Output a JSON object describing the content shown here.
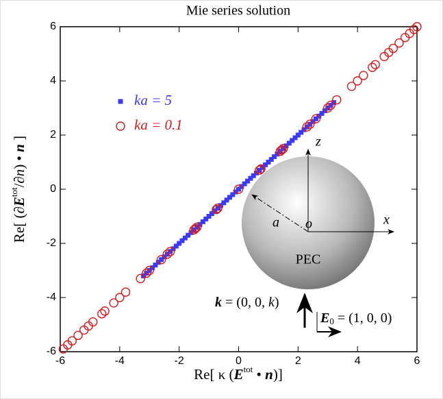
{
  "chart_data": {
    "type": "scatter",
    "title": "Mie series solution",
    "x_label": [
      "Re[ κ (",
      "E",
      "tot",
      " • ",
      "n",
      ")]"
    ],
    "y_label": [
      "Re[ (∂",
      "E",
      "tot",
      "/∂",
      "n",
      ") • ",
      "n",
      " ]"
    ],
    "xlim": [
      -6,
      6
    ],
    "ylim": [
      -6,
      6
    ],
    "xticks": [
      -6,
      -4,
      -2,
      0,
      2,
      4,
      6
    ],
    "yticks": [
      -6,
      -4,
      -2,
      0,
      2,
      4,
      6
    ],
    "series": [
      {
        "name": "ka = 5",
        "color": "#3a3aff",
        "marker": "square",
        "x": [
          -3.2,
          -3.1,
          -3.0,
          -2.9,
          -2.8,
          -2.7,
          -2.6,
          -2.5,
          -2.4,
          -2.3,
          -2.2,
          -2.1,
          -2.0,
          -1.9,
          -1.8,
          -1.7,
          -1.6,
          -1.5,
          -1.4,
          -1.3,
          -1.2,
          -1.1,
          -1.0,
          -0.9,
          -0.8,
          -0.7,
          -0.6,
          -0.5,
          -0.4,
          -0.3,
          -0.2,
          -0.1,
          0,
          0.1,
          0.2,
          0.3,
          0.4,
          0.5,
          0.6,
          0.7,
          0.8,
          0.9,
          1.0,
          1.1,
          1.2,
          1.3,
          1.4,
          1.5,
          1.6,
          1.7,
          1.8,
          1.9,
          2.0,
          2.1,
          2.2,
          2.3,
          2.4,
          2.5,
          2.6,
          2.7,
          2.8,
          2.9,
          3.0,
          3.1,
          3.2
        ],
        "values": [
          -3.2,
          -3.1,
          -3.0,
          -2.9,
          -2.8,
          -2.7,
          -2.6,
          -2.5,
          -2.4,
          -2.3,
          -2.2,
          -2.1,
          -2.0,
          -1.9,
          -1.8,
          -1.7,
          -1.6,
          -1.5,
          -1.4,
          -1.3,
          -1.2,
          -1.1,
          -1.0,
          -0.9,
          -0.8,
          -0.7,
          -0.6,
          -0.5,
          -0.4,
          -0.3,
          -0.2,
          -0.1,
          0,
          0.1,
          0.2,
          0.3,
          0.4,
          0.5,
          0.6,
          0.7,
          0.8,
          0.9,
          1.0,
          1.1,
          1.2,
          1.3,
          1.4,
          1.5,
          1.6,
          1.7,
          1.8,
          1.9,
          2.0,
          2.1,
          2.2,
          2.3,
          2.4,
          2.5,
          2.6,
          2.7,
          2.8,
          2.9,
          3.0,
          3.1,
          3.2
        ]
      },
      {
        "name": "ka = 0.1",
        "color": "#d81a1a",
        "marker": "circle",
        "x": [
          -5.9,
          -5.75,
          -5.6,
          -5.4,
          -5.2,
          -5.05,
          -4.9,
          -4.6,
          -4.5,
          -4.2,
          -4.0,
          -3.8,
          -3.3,
          -3.1,
          -3.0,
          -2.6,
          -2.4,
          -2.3,
          -1.5,
          -1.45,
          -1.4,
          -0.75,
          -0.7,
          0,
          0.7,
          0.75,
          1.4,
          1.45,
          1.5,
          2.3,
          2.4,
          2.6,
          3.0,
          3.1,
          3.3,
          3.8,
          4.0,
          4.2,
          4.5,
          4.6,
          4.9,
          5.05,
          5.2,
          5.4,
          5.6,
          5.75,
          5.9,
          6.0
        ],
        "values": [
          -5.9,
          -5.75,
          -5.6,
          -5.4,
          -5.2,
          -5.05,
          -4.9,
          -4.6,
          -4.5,
          -4.2,
          -4.0,
          -3.8,
          -3.3,
          -3.1,
          -3.0,
          -2.6,
          -2.4,
          -2.3,
          -1.5,
          -1.45,
          -1.4,
          -0.75,
          -0.7,
          0,
          0.7,
          0.75,
          1.4,
          1.45,
          1.5,
          2.3,
          2.4,
          2.6,
          3.0,
          3.1,
          3.3,
          3.8,
          4.0,
          4.2,
          4.5,
          4.6,
          4.9,
          5.05,
          5.2,
          5.4,
          5.6,
          5.75,
          5.9,
          6.0
        ]
      }
    ],
    "annotations": {
      "z": "z",
      "x": "x",
      "o": "o",
      "a": "a",
      "pec": "PEC",
      "k": [
        "k",
        " = (0, 0, ",
        "k",
        ")"
      ],
      "e0": [
        "E",
        "0",
        " = (1, 0, 0)"
      ]
    }
  }
}
